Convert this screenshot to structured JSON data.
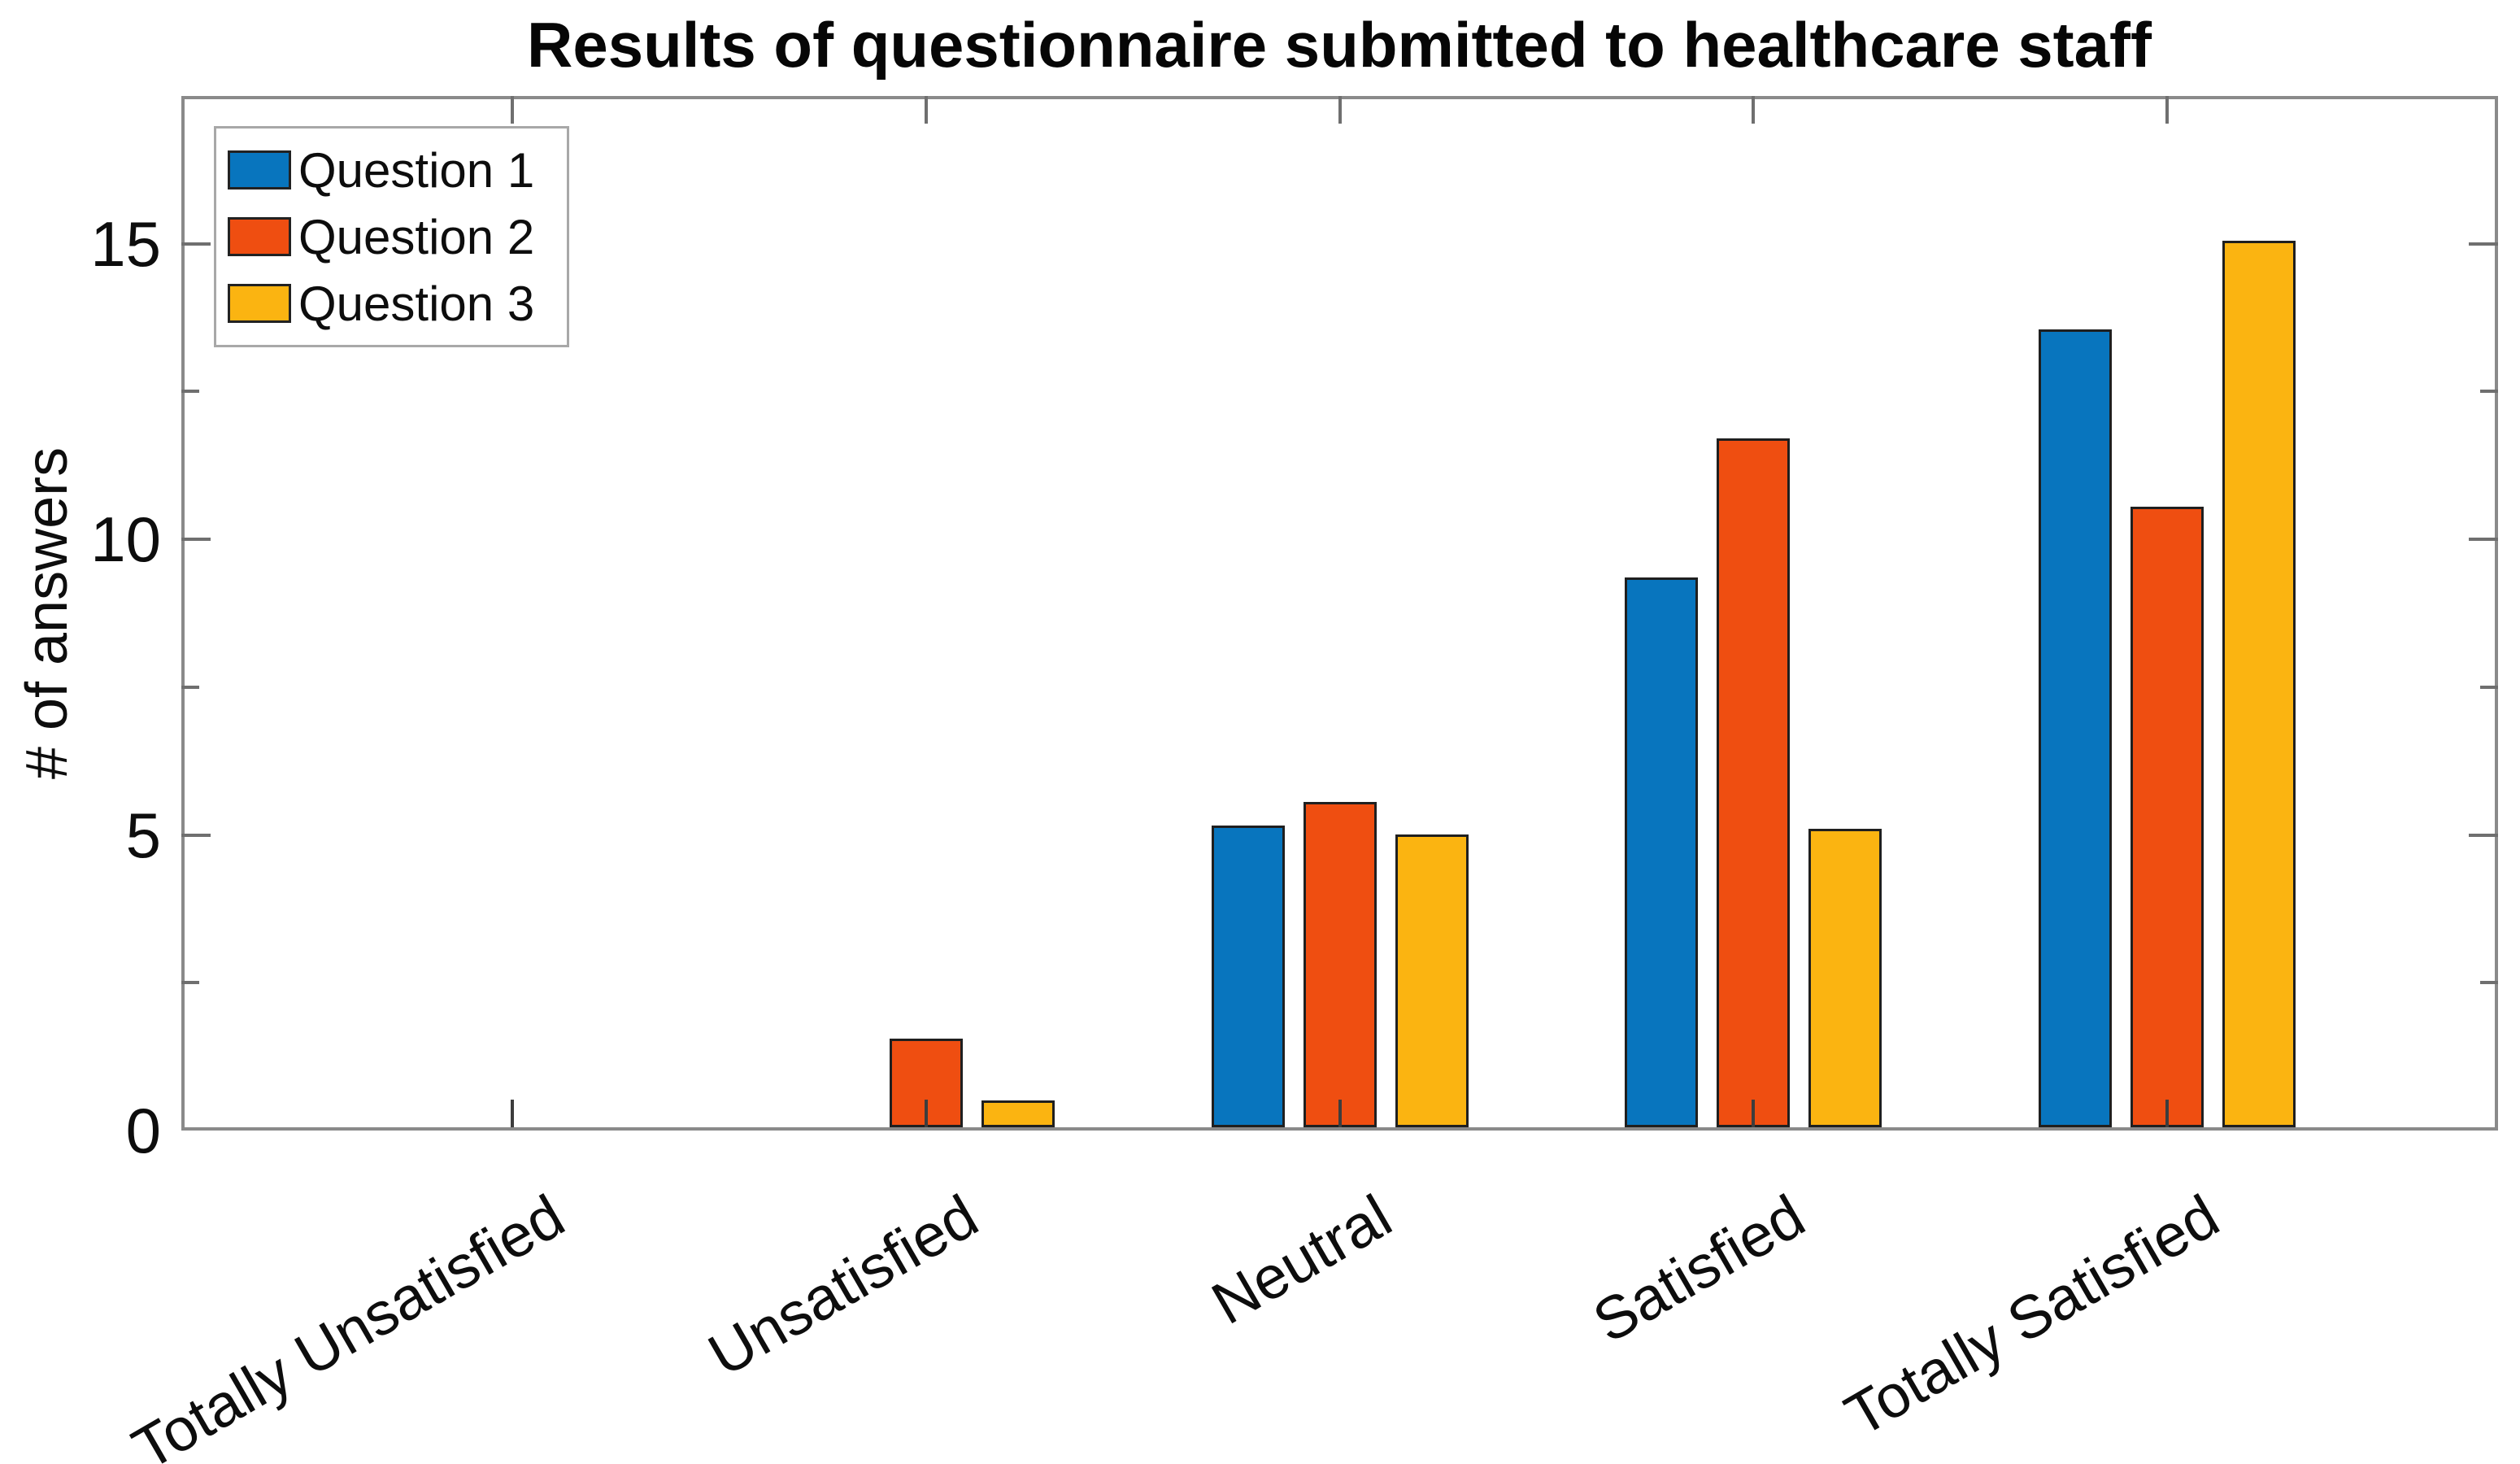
{
  "figure": {
    "title": "Results of questionnaire submitted to healthcare staff",
    "ylabel": "# of answers"
  },
  "chart_data": {
    "type": "bar",
    "title": "Results of questionnaire submitted to healthcare staff",
    "xlabel": "",
    "ylabel": "# of answers",
    "categories": [
      "Totally Unsatisfied",
      "Unsatisfied",
      "Neutral",
      "Satisfied",
      "Totally Satisfied"
    ],
    "series": [
      {
        "name": "Question 1",
        "color": "#0875be",
        "values": [
          0,
          0,
          5.1,
          9.3,
          13.5
        ]
      },
      {
        "name": "Question 2",
        "color": "#ef4e11",
        "values": [
          0,
          1.5,
          5.5,
          11.65,
          10.5
        ]
      },
      {
        "name": "Question 3",
        "color": "#fbb411",
        "values": [
          0,
          0.45,
          4.95,
          5.05,
          15
        ]
      }
    ],
    "ylim": [
      0,
      17.5
    ],
    "yticks": [
      0,
      5,
      10,
      15
    ],
    "minor_yticks": [
      2.5,
      7.5,
      12.5
    ],
    "minor_tick_step": 2.5,
    "grid": false,
    "legend_position": "top-left",
    "x_tick_label_rotation_deg": 30,
    "bar_edge_color": "#1f1f1f",
    "axis_box_color": "#8a8a8a"
  }
}
